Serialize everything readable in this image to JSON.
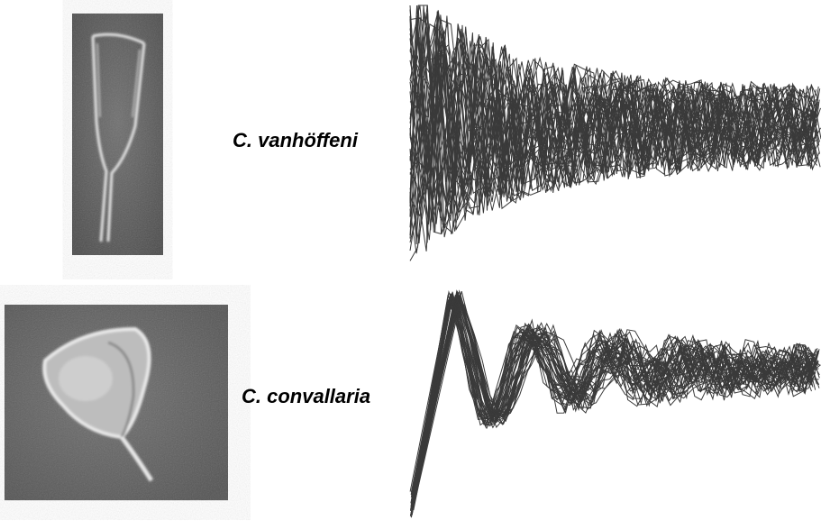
{
  "panels": [
    {
      "label": "C. vanhöffeni"
    },
    {
      "label": "C. convallaria"
    }
  ]
}
